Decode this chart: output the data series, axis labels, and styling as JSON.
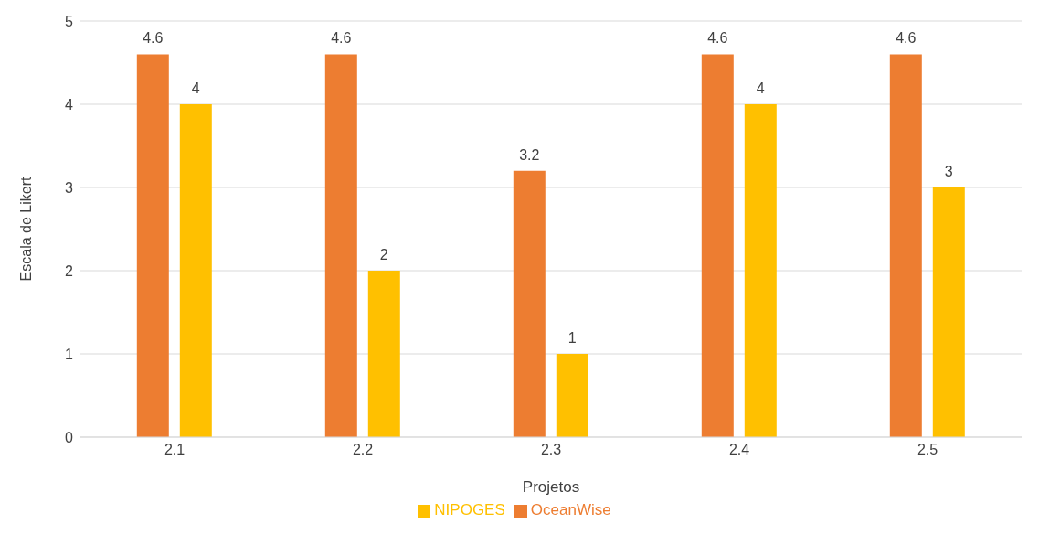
{
  "chart_data": {
    "type": "bar",
    "xlabel": "Projetos",
    "ylabel": "Escala de Likert",
    "categories": [
      "2.1",
      "2.2",
      "2.3",
      "2.4",
      "2.5"
    ],
    "series": [
      {
        "name": "OceanWise",
        "color": "#ed7d31",
        "values": [
          4.6,
          4.6,
          3.2,
          4.6,
          4.6
        ]
      },
      {
        "name": "NIPOGES",
        "color": "#ffc000",
        "values": [
          4,
          2,
          1,
          4,
          3
        ]
      }
    ],
    "ylim": [
      0,
      5
    ],
    "yticks": [
      0,
      1,
      2,
      3,
      4,
      5
    ],
    "grid": "y",
    "legend": "bottom",
    "data_labels": true
  }
}
